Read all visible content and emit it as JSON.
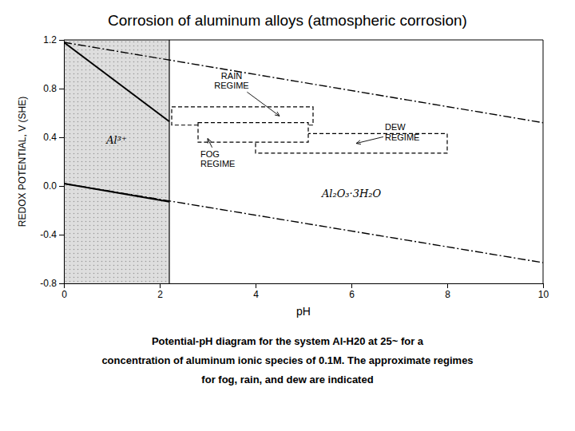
{
  "chart_data": {
    "type": "line",
    "title": "Corrosion of aluminum  alloys (atmospheric corrosion)",
    "x_label": "pH",
    "y_label": "REDOX POTENTIAL, V (SHE)",
    "xlim": [
      0,
      10
    ],
    "ylim": [
      -0.8,
      1.2
    ],
    "xticks": [
      0,
      2,
      4,
      6,
      8,
      10
    ],
    "yticks": [
      -0.8,
      -0.4,
      {
        "value": 0,
        "label": "0.0"
      },
      0.4,
      0.8,
      1.2
    ],
    "grid": false,
    "hatched_region": {
      "x_end": 2.2,
      "color": "#d8d8d8"
    },
    "series": [
      {
        "x": [
          0,
          10
        ],
        "values": [
          1.18,
          0.52
        ],
        "color": "#000000",
        "line_style": "dashdot"
      },
      {
        "x": [
          0,
          10
        ],
        "values": [
          0.02,
          -0.63
        ],
        "color": "#000000",
        "line_style": "dashdot"
      },
      {
        "x": [
          0,
          2.2
        ],
        "values": [
          1.18,
          0.53
        ],
        "color": "#000000",
        "line_style": "solid"
      },
      {
        "x": [
          0,
          2.2
        ],
        "values": [
          0.02,
          -0.13
        ],
        "color": "#000000",
        "line_style": "solid"
      }
    ],
    "boxes": [
      {
        "x0": 2.25,
        "x1": 5.2,
        "y0": 0.5,
        "y1": 0.65
      },
      {
        "x0": 2.8,
        "x1": 5.1,
        "y0": 0.36,
        "y1": 0.52,
        "color": "#ffffff"
      },
      {
        "x0": 4.0,
        "x1": 8.0,
        "y0": 0.27,
        "y1": 0.43
      }
    ],
    "annotations": [
      {
        "text": "Al³⁺",
        "x": 1.1,
        "y": 0.38
      },
      {
        "text": "Al₂O₃·3H₂O",
        "x": 6.0,
        "y": -0.06
      },
      {
        "text": "RAIN\nREGIME",
        "x": 3.5,
        "y": 0.78,
        "arrow_x": 4.5,
        "arrow_y": 0.575
      },
      {
        "text": "FOG\nREGIME",
        "x": 2.85,
        "y": 0.295,
        "arrow_x": 3.0,
        "arrow_y": 0.39
      },
      {
        "text": "DEW\nREGIME",
        "x": 6.7,
        "y": 0.44,
        "arrow_x": 6.1,
        "arrow_y": 0.35
      }
    ],
    "caption": [
      "Potential-pH diagram for the system Al-H20 at 25~ for a",
      "concentration of aluminum ionic species of 0.1M. The approximate regimes",
      "for fog, rain, and dew are indicated"
    ]
  }
}
